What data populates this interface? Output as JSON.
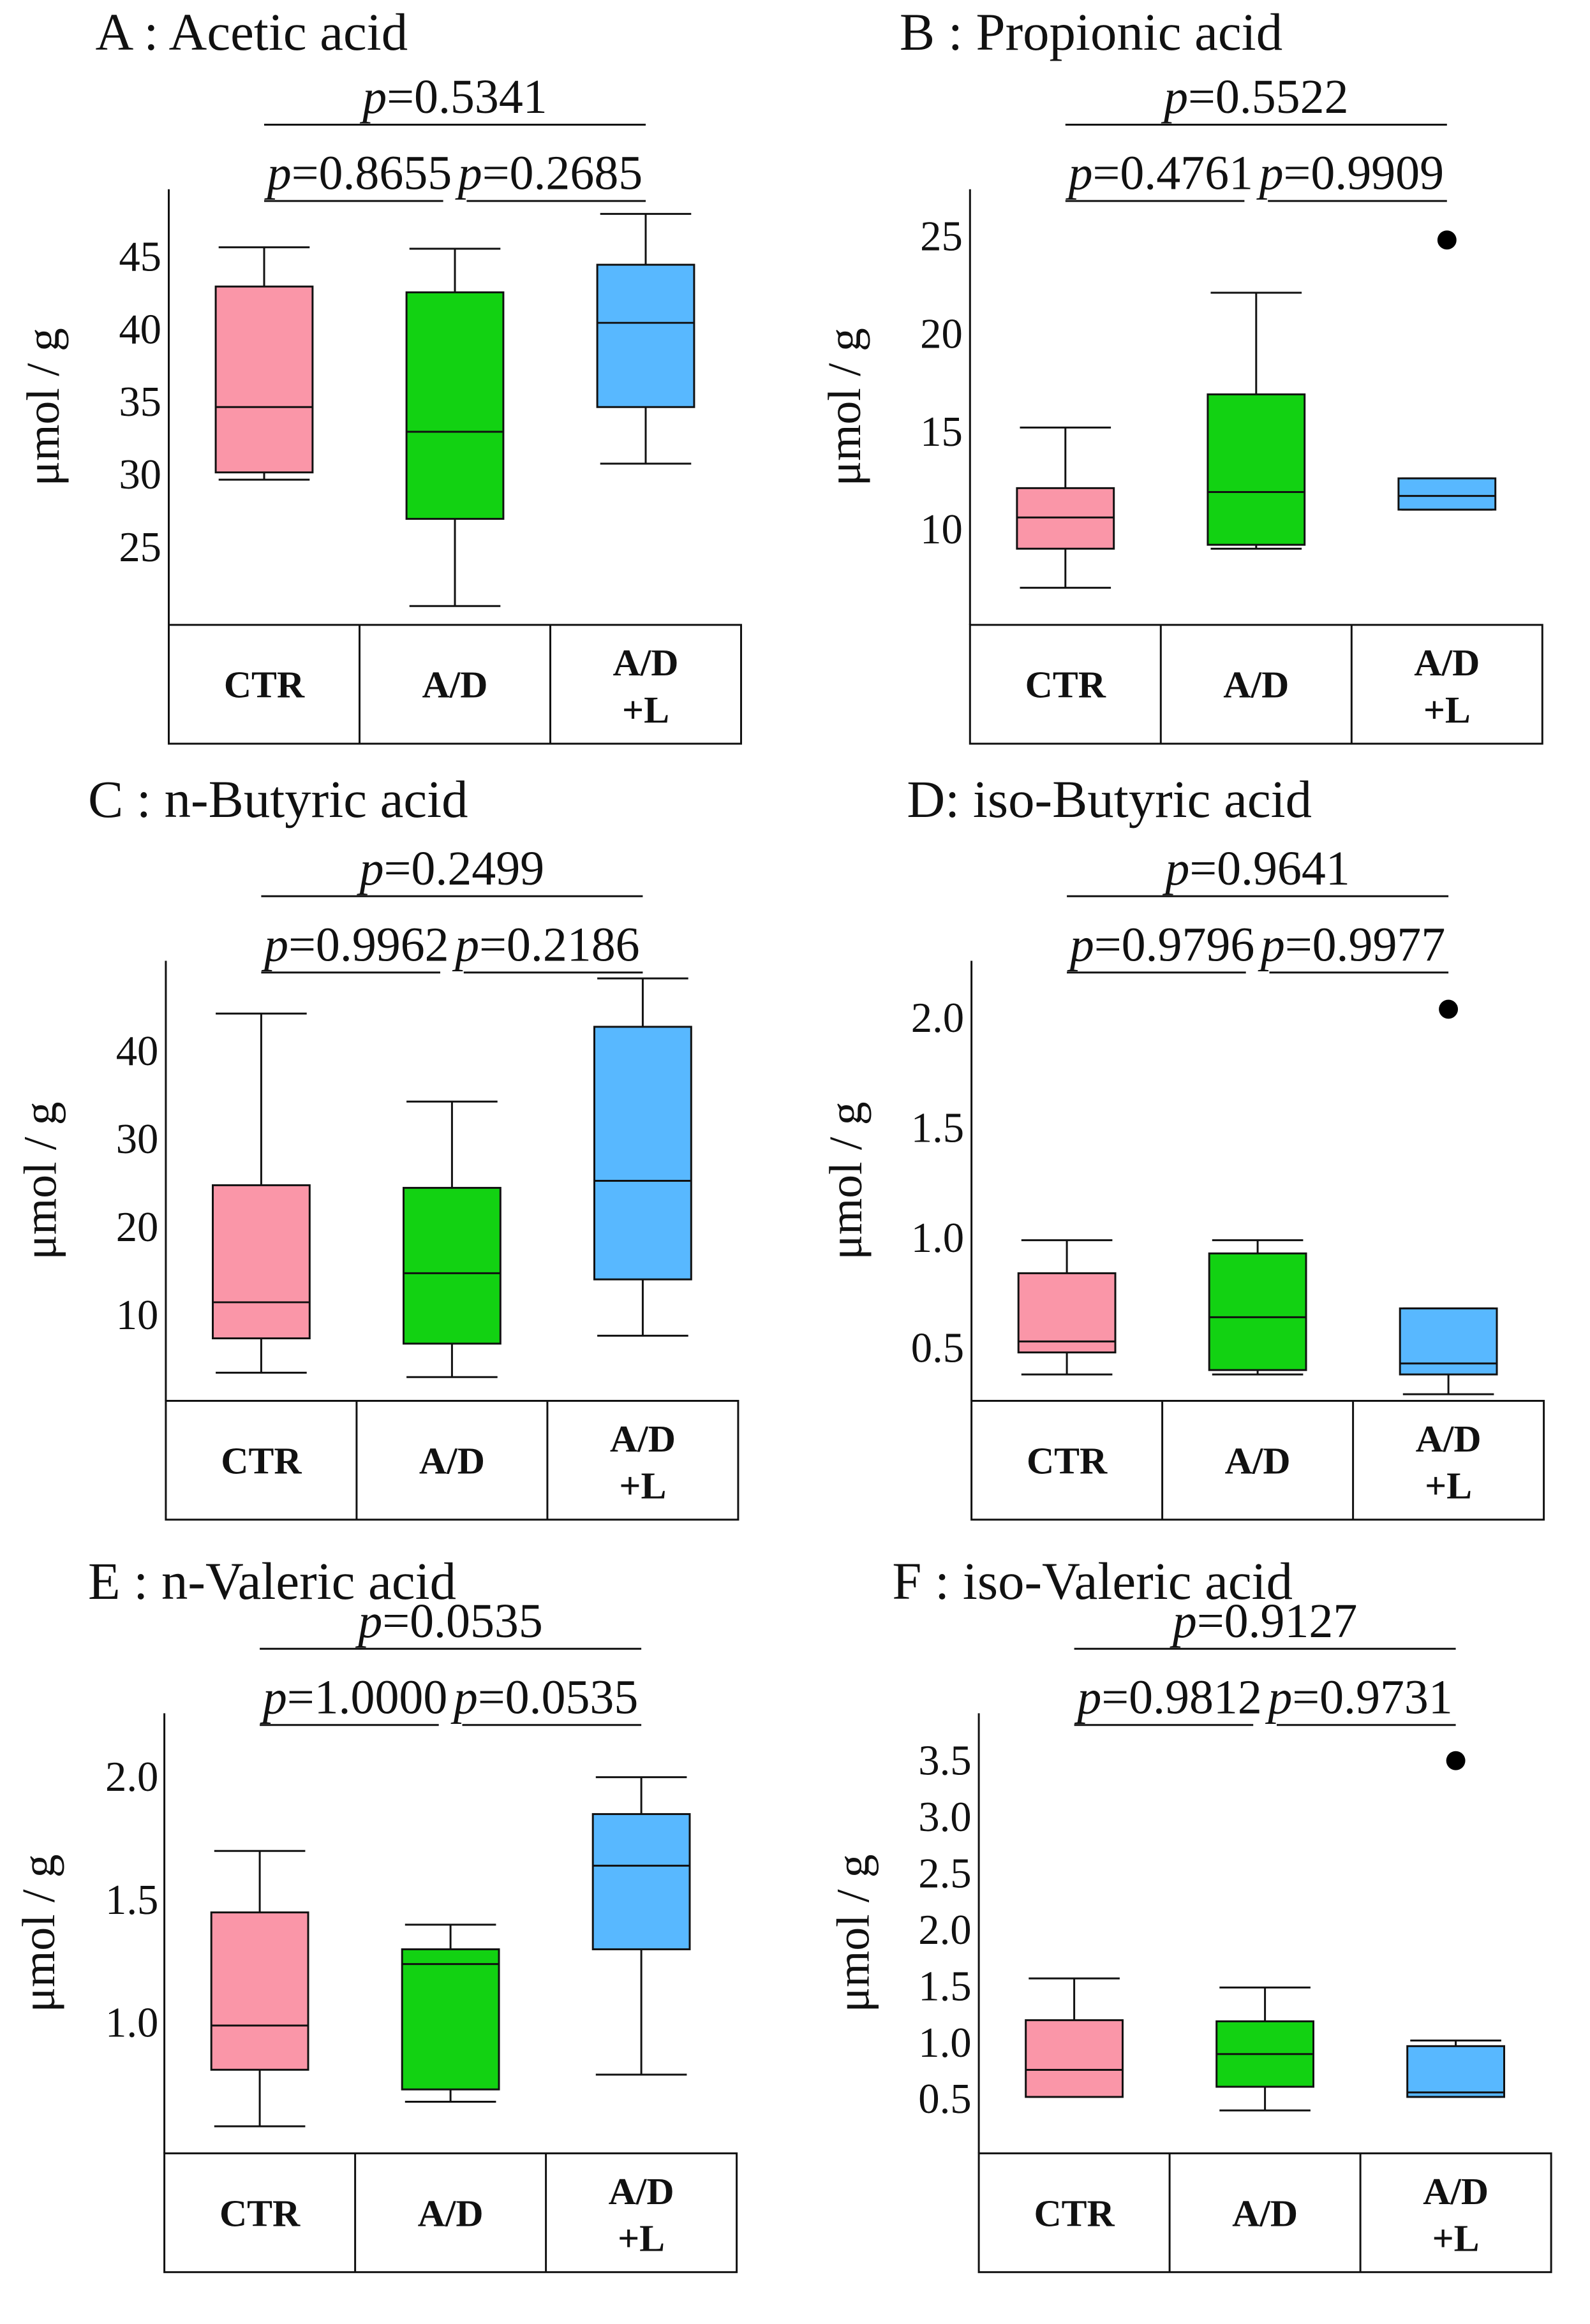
{
  "colors": {
    "CTR": "#fa96a8",
    "A/D": "#12d212",
    "A/D+L": "#58b8ff",
    "axis": "#111111"
  },
  "group_labels": [
    [
      "CTR"
    ],
    [
      "A/D"
    ],
    [
      "A/D",
      "+L"
    ]
  ],
  "ylabel": "μmol / g",
  "chart_data": [
    {
      "type": "box",
      "title": "A : Acetic acid",
      "ylabel": "μmol / g",
      "ylim": [
        19.5,
        49.5
      ],
      "yticks": [
        25,
        30,
        35,
        40,
        45
      ],
      "ytick_labels": [
        "25",
        "30",
        "35",
        "40",
        "45"
      ],
      "p_top": "0.5341",
      "p_left": "0.8655",
      "p_right": "0.2685",
      "boxes": [
        {
          "group": "CTR",
          "min": 29.5,
          "q1": 30.0,
          "median": 34.5,
          "q3": 42.8,
          "max": 45.5
        },
        {
          "group": "A/D",
          "min": 20.8,
          "q1": 26.8,
          "median": 32.8,
          "q3": 42.4,
          "max": 45.4
        },
        {
          "group": "A/D+L",
          "min": 30.6,
          "q1": 34.5,
          "median": 40.3,
          "q3": 44.3,
          "max": 47.8
        }
      ],
      "outliers": []
    },
    {
      "type": "box",
      "title": "B : Propionic acid",
      "ylabel": "μmol / g",
      "ylim": [
        5.0,
        27.3
      ],
      "yticks": [
        10,
        15,
        20,
        25
      ],
      "ytick_labels": [
        "10",
        "15",
        "20",
        "25"
      ],
      "p_top": "0.5522",
      "p_left": "0.4761",
      "p_right": "0.9909",
      "boxes": [
        {
          "group": "CTR",
          "min": 6.9,
          "q1": 8.9,
          "median": 10.5,
          "q3": 12.0,
          "max": 15.1
        },
        {
          "group": "A/D",
          "min": 8.9,
          "q1": 9.1,
          "median": 11.8,
          "q3": 16.8,
          "max": 22.0
        },
        {
          "group": "A/D+L",
          "min": 10.9,
          "q1": 10.9,
          "median": 11.6,
          "q3": 12.5,
          "max": 12.5
        }
      ],
      "outliers": [
        {
          "group": "A/D+L",
          "value": 24.7
        }
      ]
    },
    {
      "type": "box",
      "title": "C : n-Butyric acid",
      "ylabel": "μmol / g",
      "ylim": [
        0,
        50
      ],
      "yticks": [
        10,
        20,
        30,
        40
      ],
      "ytick_labels": [
        "10",
        "20",
        "30",
        "40"
      ],
      "p_top": "0.2499",
      "p_left": "0.9962",
      "p_right": "0.2186",
      "boxes": [
        {
          "group": "CTR",
          "min": 3.2,
          "q1": 7.1,
          "median": 11.2,
          "q3": 24.5,
          "max": 44.0
        },
        {
          "group": "A/D",
          "min": 2.7,
          "q1": 6.5,
          "median": 14.5,
          "q3": 24.2,
          "max": 34.0
        },
        {
          "group": "A/D+L",
          "min": 7.4,
          "q1": 13.8,
          "median": 25.0,
          "q3": 42.5,
          "max": 48.0
        }
      ],
      "outliers": []
    },
    {
      "type": "box",
      "title": "D: iso-Butyric acid",
      "ylabel": "μmol / g",
      "ylim": [
        0.25,
        2.25
      ],
      "yticks": [
        0.5,
        1.0,
        1.5,
        2.0
      ],
      "ytick_labels": [
        "0.5",
        "1.0",
        "1.5",
        "2.0"
      ],
      "p_top": "0.9641",
      "p_left": "0.9796",
      "p_right": "0.9977",
      "boxes": [
        {
          "group": "CTR",
          "min": 0.37,
          "q1": 0.47,
          "median": 0.52,
          "q3": 0.83,
          "max": 0.98
        },
        {
          "group": "A/D",
          "min": 0.37,
          "q1": 0.39,
          "median": 0.63,
          "q3": 0.92,
          "max": 0.98
        },
        {
          "group": "A/D+L",
          "min": 0.28,
          "q1": 0.37,
          "median": 0.42,
          "q3": 0.67,
          "max": 0.67
        }
      ],
      "outliers": [
        {
          "group": "A/D+L",
          "value": 2.03
        }
      ]
    },
    {
      "type": "box",
      "title": "E : n-Valeric acid",
      "ylabel": "μmol / g",
      "ylim": [
        0.46,
        2.25
      ],
      "yticks": [
        1.0,
        1.5,
        2.0
      ],
      "ytick_labels": [
        "1.0",
        "1.5",
        "2.0"
      ],
      "p_top": "0.0535",
      "p_left": "1.0000",
      "p_right": "0.0535",
      "boxes": [
        {
          "group": "CTR",
          "min": 0.57,
          "q1": 0.8,
          "median": 0.98,
          "q3": 1.44,
          "max": 1.69
        },
        {
          "group": "A/D",
          "min": 0.67,
          "q1": 0.72,
          "median": 1.23,
          "q3": 1.29,
          "max": 1.39
        },
        {
          "group": "A/D+L",
          "min": 0.78,
          "q1": 1.29,
          "median": 1.63,
          "q3": 1.84,
          "max": 1.99
        }
      ],
      "outliers": []
    },
    {
      "type": "box",
      "title": "F : iso-Valeric acid",
      "ylabel": "μmol / g",
      "ylim": [
        0.0,
        3.9
      ],
      "yticks": [
        0.5,
        1.0,
        1.5,
        2.0,
        2.5,
        3.0,
        3.5
      ],
      "ytick_labels": [
        "0.5",
        "1.0",
        "1.5",
        "2.0",
        "2.5",
        "3.0",
        "3.5"
      ],
      "p_top": "0.9127",
      "p_left": "0.9812",
      "p_right": "0.9731",
      "boxes": [
        {
          "group": "CTR",
          "min": 0.5,
          "q1": 0.5,
          "median": 0.74,
          "q3": 1.18,
          "max": 1.55
        },
        {
          "group": "A/D",
          "min": 0.38,
          "q1": 0.59,
          "median": 0.88,
          "q3": 1.17,
          "max": 1.47
        },
        {
          "group": "A/D+L",
          "min": 0.5,
          "q1": 0.5,
          "median": 0.54,
          "q3": 0.95,
          "max": 1.0
        }
      ],
      "outliers": [
        {
          "group": "A/D+L",
          "value": 3.48
        }
      ]
    }
  ]
}
